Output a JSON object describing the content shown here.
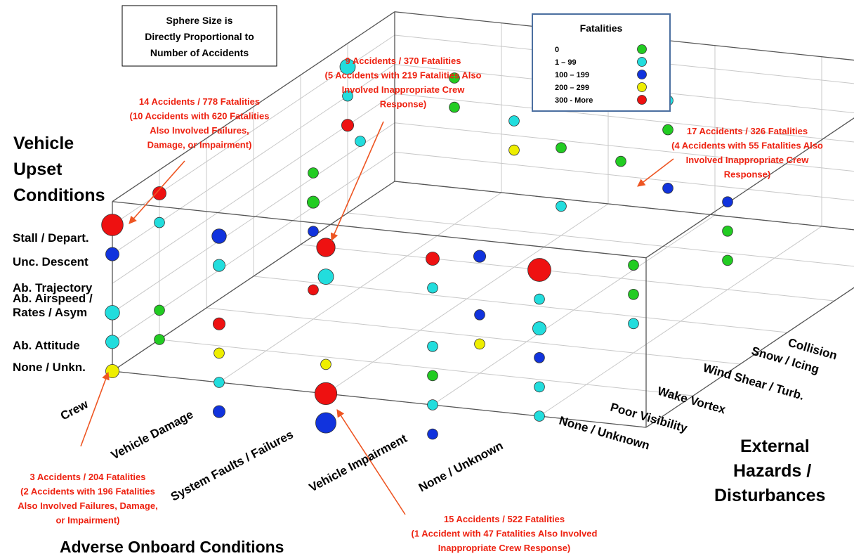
{
  "chart_data": {
    "type": "scatter",
    "subtype": "3d-bubble",
    "x_axis": {
      "title": "Adverse Onboard Conditions",
      "categories": [
        "Crew",
        "Vehicle Damage",
        "System Faults / Failures",
        "Vehicle Impairment",
        "None / Unknown"
      ]
    },
    "y_axis": {
      "title_lines": [
        "Vehicle",
        "Upset",
        "Conditions"
      ],
      "categories": [
        "None / Unkn.",
        "Ab. Attitude",
        "Ab. Airspeed /\nRates / Asym",
        "Ab. Trajectory",
        "Unc. Descent",
        "Stall / Depart."
      ]
    },
    "z_axis": {
      "title_lines": [
        "External",
        "Hazards /",
        "Disturbances"
      ],
      "categories": [
        "None / Unknown",
        "Poor Visibility",
        "Wake Vortex",
        "Wind Shear / Turb.",
        "Snow / Icing",
        "Collision"
      ]
    },
    "size_note": "Sphere Size is Directly Proportional to Number of Accidents",
    "legend": {
      "title": "Fatalities",
      "items": [
        {
          "label": "0",
          "color": "#22cc22"
        },
        {
          "label": "1 – 99",
          "color": "#22dddd"
        },
        {
          "label": "100 – 199",
          "color": "#1133dd"
        },
        {
          "label": "200 – 299",
          "color": "#eeee00"
        },
        {
          "label": "300 - More",
          "color": "#ee1111"
        }
      ]
    },
    "points": [
      {
        "x": 0,
        "y": 5,
        "z": 0,
        "accidents": 14,
        "fatalities": 778
      },
      {
        "x": 0,
        "y": 4,
        "z": 0,
        "accidents": 3,
        "fatalities": 150
      },
      {
        "x": 0,
        "y": 2,
        "z": 0,
        "accidents": 4,
        "fatalities": 50
      },
      {
        "x": 0,
        "y": 1,
        "z": 0,
        "accidents": 3,
        "fatalities": 50
      },
      {
        "x": 0,
        "y": 0,
        "z": 0,
        "accidents": 3,
        "fatalities": 204
      },
      {
        "x": 0,
        "y": 5,
        "z": 1,
        "accidents": 3,
        "fatalities": 400
      },
      {
        "x": 0,
        "y": 4,
        "z": 1,
        "accidents": 1,
        "fatalities": 50
      },
      {
        "x": 0,
        "y": 1,
        "z": 1,
        "accidents": 1,
        "fatalities": 0
      },
      {
        "x": 0,
        "y": 0,
        "z": 1,
        "accidents": 1,
        "fatalities": 0
      },
      {
        "x": 0,
        "y": 5,
        "z": 5,
        "accidents": 5,
        "fatalities": 50
      },
      {
        "x": 0,
        "y": 4,
        "z": 5,
        "accidents": 1,
        "fatalities": 50
      },
      {
        "x": 0,
        "y": 3,
        "z": 5,
        "accidents": 2,
        "fatalities": 350
      },
      {
        "x": 1,
        "y": 5,
        "z": 0,
        "accidents": 4,
        "fatalities": 150
      },
      {
        "x": 1,
        "y": 4,
        "z": 0,
        "accidents": 2,
        "fatalities": 50
      },
      {
        "x": 1,
        "y": 2,
        "z": 0,
        "accidents": 2,
        "fatalities": 300
      },
      {
        "x": 1,
        "y": 1,
        "z": 0,
        "accidents": 1,
        "fatalities": 250
      },
      {
        "x": 1,
        "y": 0,
        "z": 0,
        "accidents": 1,
        "fatalities": 50
      },
      {
        "x": 1,
        "y": 5,
        "z": 2,
        "accidents": 1,
        "fatalities": 0
      },
      {
        "x": 1,
        "y": 4,
        "z": 2,
        "accidents": 2,
        "fatalities": 0
      },
      {
        "x": 1,
        "y": 3,
        "z": 2,
        "accidents": 1,
        "fatalities": 150
      },
      {
        "x": 1,
        "y": 1,
        "z": 2,
        "accidents": 1,
        "fatalities": 300
      },
      {
        "x": 1,
        "y": 5,
        "z": 3,
        "accidents": 1,
        "fatalities": 50
      },
      {
        "x": 1,
        "y": 5,
        "z": 5,
        "accidents": 1,
        "fatalities": 0
      },
      {
        "x": 1,
        "y": 4,
        "z": 5,
        "accidents": 1,
        "fatalities": 0
      },
      {
        "x": 1,
        "y": -1,
        "z": 0,
        "accidents": 2,
        "fatalities": 150
      },
      {
        "x": 2,
        "y": 5,
        "z": 0,
        "accidents": 9,
        "fatalities": 370
      },
      {
        "x": 2,
        "y": 4,
        "z": 0,
        "accidents": 5,
        "fatalities": 50
      },
      {
        "x": 2,
        "y": 1,
        "z": 0,
        "accidents": 1,
        "fatalities": 250
      },
      {
        "x": 2,
        "y": 0,
        "z": 0,
        "accidents": 15,
        "fatalities": 522
      },
      {
        "x": 2,
        "y": -1,
        "z": 0,
        "accidents": 12,
        "fatalities": 150
      },
      {
        "x": 2,
        "y": 5,
        "z": 4,
        "accidents": 1,
        "fatalities": 50
      },
      {
        "x": 2,
        "y": 4,
        "z": 4,
        "accidents": 1,
        "fatalities": 250
      },
      {
        "x": 2,
        "y": 5,
        "z": 5,
        "accidents": 1,
        "fatalities": 50
      },
      {
        "x": 2,
        "y": 3,
        "z": 5,
        "accidents": 1,
        "fatalities": 0
      },
      {
        "x": 2,
        "y": 1,
        "z": 5,
        "accidents": 1,
        "fatalities": 50
      },
      {
        "x": 3,
        "y": 5,
        "z": 0,
        "accidents": 3,
        "fatalities": 400
      },
      {
        "x": 3,
        "y": 4,
        "z": 0,
        "accidents": 1,
        "fatalities": 50
      },
      {
        "x": 3,
        "y": 2,
        "z": 0,
        "accidents": 1,
        "fatalities": 50
      },
      {
        "x": 3,
        "y": 0,
        "z": 0,
        "accidents": 1,
        "fatalities": 50
      },
      {
        "x": 3,
        "y": 1,
        "z": 0,
        "accidents": 1,
        "fatalities": 0
      },
      {
        "x": 3,
        "y": 4,
        "z": 1,
        "accidents": 2,
        "fatalities": 150
      },
      {
        "x": 3,
        "y": 2,
        "z": 1,
        "accidents": 1,
        "fatalities": 150
      },
      {
        "x": 3,
        "y": 1,
        "z": 1,
        "accidents": 1,
        "fatalities": 250
      },
      {
        "x": 3,
        "y": -1,
        "z": 0,
        "accidents": 1,
        "fatalities": 150
      },
      {
        "x": 3,
        "y": 5,
        "z": 5,
        "accidents": 1,
        "fatalities": 50
      },
      {
        "x": 3,
        "y": 4,
        "z": 5,
        "accidents": 1,
        "fatalities": 0
      },
      {
        "x": 3,
        "y": 2,
        "z": 5,
        "accidents": 1,
        "fatalities": 150
      },
      {
        "x": 3,
        "y": 4,
        "z": 4,
        "accidents": 1,
        "fatalities": 0
      },
      {
        "x": 4,
        "y": 5,
        "z": 0,
        "accidents": 17,
        "fatalities": 326
      },
      {
        "x": 4,
        "y": 4,
        "z": 0,
        "accidents": 1,
        "fatalities": 50
      },
      {
        "x": 4,
        "y": 3,
        "z": 0,
        "accidents": 3,
        "fatalities": 50
      },
      {
        "x": 4,
        "y": 2,
        "z": 0,
        "accidents": 1,
        "fatalities": 150
      },
      {
        "x": 4,
        "y": 1,
        "z": 0,
        "accidents": 1,
        "fatalities": 50
      },
      {
        "x": 4,
        "y": 0,
        "z": 0,
        "accidents": 1,
        "fatalities": 50
      },
      {
        "x": 4,
        "y": 3,
        "z": 2,
        "accidents": 1,
        "fatalities": 0
      },
      {
        "x": 4,
        "y": 2,
        "z": 2,
        "accidents": 1,
        "fatalities": 0
      },
      {
        "x": 4,
        "y": 1,
        "z": 2,
        "accidents": 1,
        "fatalities": 50
      },
      {
        "x": 4,
        "y": 3,
        "z": 4,
        "accidents": 1,
        "fatalities": 150
      },
      {
        "x": 4,
        "y": 2,
        "z": 4,
        "accidents": 1,
        "fatalities": 0
      },
      {
        "x": 4,
        "y": 1,
        "z": 4,
        "accidents": 1,
        "fatalities": 0
      }
    ],
    "annotations": [
      {
        "lines": [
          "14 Accidents / 778 Fatalities",
          "(10 Accidents with 620 Fatalities",
          "Also Involved Failures,",
          "Damage, or Impairment)"
        ]
      },
      {
        "lines": [
          "9 Accidents / 370 Fatalities",
          "(5 Accidents with 219 Fatalities Also",
          "Involved Inappropriate Crew",
          "Response)"
        ]
      },
      {
        "lines": [
          "17 Accidents / 326 Fatalities",
          "(4 Accidents with 55 Fatalities Also",
          "Involved Inappropriate Crew",
          "Response)"
        ]
      },
      {
        "lines": [
          "3 Accidents / 204 Fatalities",
          "(2 Accidents with 196 Fatalities",
          "Also Involved Failures, Damage,",
          "or Impairment)"
        ]
      },
      {
        "lines": [
          "15 Accidents / 522 Fatalities",
          "(1 Accident with 47 Fatalities Also Involved",
          "Inappropriate Crew Response)"
        ]
      }
    ]
  },
  "colors": {
    "annotation": "#ee2211",
    "arrow": "#ee5522",
    "box_border": "#4b6fa0",
    "grid": "#c8c8c8",
    "frame": "#555555"
  }
}
